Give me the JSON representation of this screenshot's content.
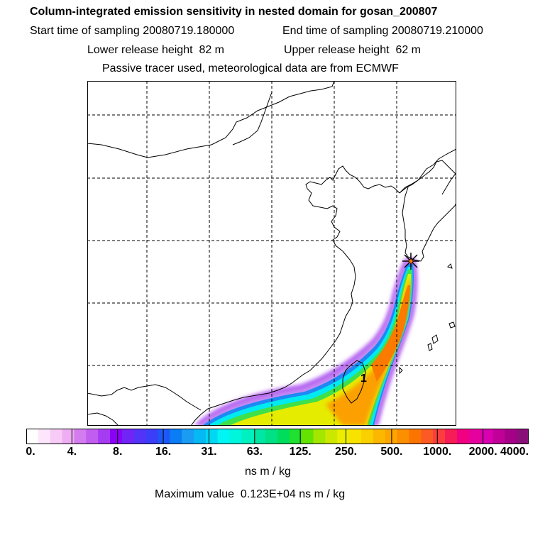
{
  "header": {
    "title": "Column-integrated emission sensitivity in nested domain for gosan_200807",
    "start_label": "Start time of sampling",
    "start_value": "20080719.180000",
    "end_label": "End time of sampling",
    "end_value": "20080719.210000",
    "lower_label": "Lower release height",
    "lower_value": "82 m",
    "upper_label": "Upper release height",
    "upper_value": "62 m",
    "note": "Passive tracer used, meteorological data are from ECMWF"
  },
  "map": {
    "release_marker": "star-marker",
    "annotation": "1"
  },
  "colorbar": {
    "ticks": [
      "0.",
      "4.",
      "8.",
      "16.",
      "31.",
      "63.",
      "125.",
      "250.",
      "500.",
      "1000.",
      "2000.",
      "4000."
    ],
    "colors": [
      "#ffffff",
      "#fde6fb",
      "#f7cbf6",
      "#efadf3",
      "#d37cf0",
      "#c15ef0",
      "#a63cf2",
      "#8b00f7",
      "#7024f6",
      "#5233f7",
      "#3c3df8",
      "#1c58f6",
      "#0a7cf4",
      "#1a9cf3",
      "#06b8f4",
      "#00d8f3",
      "#00f5f5",
      "#00f5dd",
      "#00f1c0",
      "#00e6a3",
      "#00e186",
      "#00dd5c",
      "#20e030",
      "#65e300",
      "#a3e600",
      "#cde800",
      "#ecee00",
      "#f8e200",
      "#fbd000",
      "#fcb800",
      "#fca400",
      "#fc8f00",
      "#fc7400",
      "#fb5a22",
      "#fa3d3d",
      "#f61c55",
      "#f00080",
      "#e6009d",
      "#d800b0",
      "#c00098",
      "#a40088",
      "#881078"
    ],
    "unit": "ns m / kg",
    "max_label": "Maximum value",
    "max_value": "0.123E+04",
    "max_unit": "ns m / kg"
  }
}
